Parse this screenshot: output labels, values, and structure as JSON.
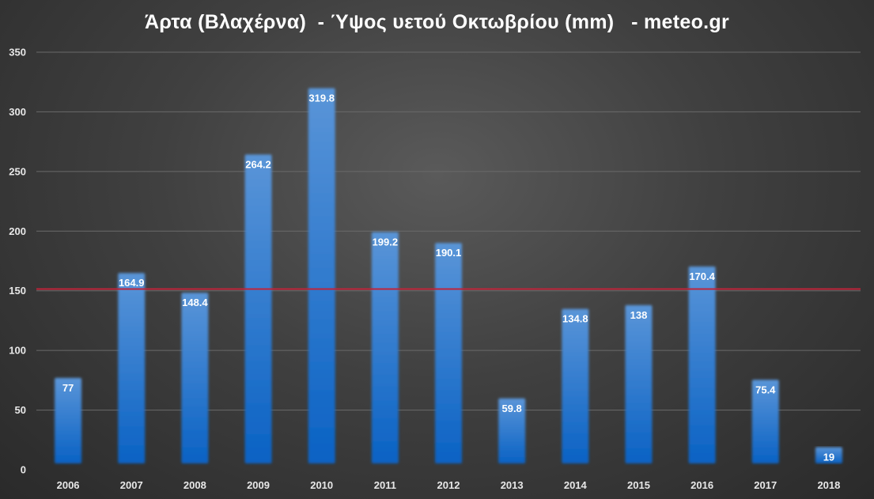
{
  "chart_data": {
    "type": "bar",
    "title": "Άρτα (Βλαχέρνα)  - Ύψος υετού Οκτωβρίου (mm)   - meteo.gr",
    "xlabel": "",
    "ylabel": "",
    "categories": [
      "2006",
      "2007",
      "2008",
      "2009",
      "2010",
      "2011",
      "2012",
      "2013",
      "2014",
      "2015",
      "2016",
      "2017",
      "2018"
    ],
    "values": [
      77,
      164.9,
      148.4,
      264.2,
      319.8,
      199.2,
      190.1,
      59.8,
      134.8,
      138,
      170.4,
      75.4,
      19
    ],
    "data_labels": [
      "77",
      "164.9",
      "148.4",
      "264.2",
      "319.8",
      "199.2",
      "190.1",
      "59.8",
      "134.8",
      "138",
      "170.4",
      "75.4",
      "19"
    ],
    "ylim": [
      0,
      350
    ],
    "yticks": [
      0,
      50,
      100,
      150,
      200,
      250,
      300,
      350
    ],
    "grid": true,
    "legend": "none",
    "reference_line": {
      "value": 151.5,
      "color": "#c0243a"
    },
    "colors": {
      "bar_top": "#5a95d8",
      "bar_bottom": "#0a62c4",
      "grid": "#6a6a6a",
      "text": "#ffffff"
    }
  }
}
